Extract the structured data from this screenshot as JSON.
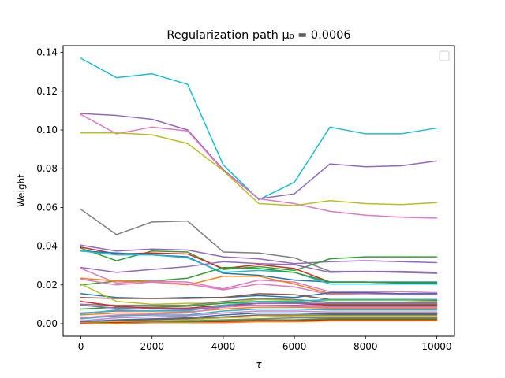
{
  "chart_data": {
    "type": "line",
    "title": "Regularization path μ₀ = 0.0006",
    "xlabel": "τ",
    "ylabel": "Weight",
    "xlim": [
      -500,
      10500
    ],
    "ylim": [
      -0.0065,
      0.1435
    ],
    "xticks": [
      0,
      2000,
      4000,
      6000,
      8000,
      10000
    ],
    "xtick_labels": [
      "0",
      "2000",
      "4000",
      "6000",
      "8000",
      "10000"
    ],
    "yticks": [
      0.0,
      0.02,
      0.04,
      0.06,
      0.08,
      0.1,
      0.12,
      0.14
    ],
    "ytick_labels": [
      "0.00",
      "0.02",
      "0.04",
      "0.06",
      "0.08",
      "0.10",
      "0.12",
      "0.14"
    ],
    "grid": false,
    "legend": "top-right (empty)",
    "x": [
      0,
      1000,
      2000,
      3000,
      4000,
      5000,
      6000,
      7000,
      8000,
      9000,
      10000
    ],
    "series": [
      {
        "color": "#17becf",
        "values": [
          0.137,
          0.127,
          0.129,
          0.1235,
          0.082,
          0.064,
          0.073,
          0.1015,
          0.098,
          0.098,
          0.101
        ]
      },
      {
        "color": "#9467bd",
        "values": [
          0.1085,
          0.1075,
          0.1055,
          0.1,
          0.0795,
          0.0645,
          0.067,
          0.0825,
          0.081,
          0.0815,
          0.084
        ]
      },
      {
        "color": "#e377c2",
        "values": [
          0.108,
          0.098,
          0.1015,
          0.0995,
          0.079,
          0.0645,
          0.062,
          0.058,
          0.056,
          0.055,
          0.0545
        ]
      },
      {
        "color": "#bcbd22",
        "values": [
          0.0985,
          0.0985,
          0.0975,
          0.093,
          0.079,
          0.062,
          0.061,
          0.0635,
          0.062,
          0.0615,
          0.0625
        ]
      },
      {
        "color": "#7f7f7f",
        "values": [
          0.059,
          0.046,
          0.0525,
          0.053,
          0.037,
          0.0365,
          0.034,
          0.027,
          0.027,
          0.0265,
          0.026
        ]
      },
      {
        "color": "#9467bd",
        "values": [
          0.0405,
          0.0375,
          0.0385,
          0.038,
          0.0345,
          0.0335,
          0.031,
          0.032,
          0.0325,
          0.032,
          0.0315
        ]
      },
      {
        "color": "#2ca02c",
        "values": [
          0.039,
          0.0325,
          0.0375,
          0.037,
          0.028,
          0.0295,
          0.0275,
          0.0335,
          0.0345,
          0.0345,
          0.0345
        ]
      },
      {
        "color": "#d62728",
        "values": [
          0.0395,
          0.036,
          0.0365,
          0.036,
          0.0285,
          0.0305,
          0.0285,
          0.0215,
          0.0215,
          0.021,
          0.0205
        ]
      },
      {
        "color": "#1f77b4",
        "values": [
          0.0375,
          0.0365,
          0.0355,
          0.0345,
          0.026,
          0.025,
          0.0225,
          0.0215,
          0.0215,
          0.0215,
          0.0215
        ]
      },
      {
        "color": "#17becf",
        "values": [
          0.0375,
          0.0355,
          0.0355,
          0.034,
          0.0265,
          0.0275,
          0.0265,
          0.0205,
          0.0205,
          0.0205,
          0.0205
        ]
      },
      {
        "color": "#9467bd",
        "values": [
          0.029,
          0.0265,
          0.028,
          0.0295,
          0.032,
          0.031,
          0.0305,
          0.0265,
          0.027,
          0.027,
          0.0265
        ]
      },
      {
        "color": "#2ca02c",
        "values": [
          0.02,
          0.022,
          0.022,
          0.0235,
          0.029,
          0.0285,
          0.0265,
          0.0215,
          0.0215,
          0.021,
          0.021
        ]
      },
      {
        "color": "#e377c2",
        "values": [
          0.0285,
          0.021,
          0.022,
          0.0215,
          0.018,
          0.0225,
          0.0215,
          0.0165,
          0.0165,
          0.0165,
          0.016
        ]
      },
      {
        "color": "#ff7f0e",
        "values": [
          0.0235,
          0.022,
          0.0215,
          0.02,
          0.0245,
          0.0245,
          0.0205,
          0.0155,
          0.016,
          0.0155,
          0.0155
        ]
      },
      {
        "color": "#e377c2",
        "values": [
          0.023,
          0.02,
          0.0215,
          0.0205,
          0.0175,
          0.0205,
          0.019,
          0.015,
          0.0155,
          0.015,
          0.015
        ]
      },
      {
        "color": "#1f77b4",
        "values": [
          0.0155,
          0.0135,
          0.013,
          0.0135,
          0.0135,
          0.0145,
          0.0135,
          0.016,
          0.016,
          0.0155,
          0.0155
        ]
      },
      {
        "color": "#8c564b",
        "values": [
          0.0135,
          0.013,
          0.013,
          0.013,
          0.0135,
          0.0155,
          0.015,
          0.0125,
          0.0125,
          0.0125,
          0.012
        ]
      },
      {
        "color": "#bcbd22",
        "values": [
          0.0205,
          0.0115,
          0.01,
          0.0105,
          0.0105,
          0.0125,
          0.012,
          0.012,
          0.012,
          0.012,
          0.0115
        ]
      },
      {
        "color": "#7f7f7f",
        "values": [
          0.01,
          0.0095,
          0.0095,
          0.0095,
          0.0115,
          0.013,
          0.0125,
          0.011,
          0.011,
          0.011,
          0.011
        ]
      },
      {
        "color": "#2ca02c",
        "values": [
          0.0075,
          0.0085,
          0.0085,
          0.009,
          0.0105,
          0.0115,
          0.011,
          0.01,
          0.01,
          0.01,
          0.01
        ]
      },
      {
        "color": "#d62728",
        "values": [
          0.0115,
          0.009,
          0.008,
          0.008,
          0.0095,
          0.0105,
          0.0105,
          0.0095,
          0.0095,
          0.0095,
          0.0095
        ]
      },
      {
        "color": "#9467bd",
        "values": [
          0.0055,
          0.0065,
          0.0065,
          0.007,
          0.009,
          0.0095,
          0.0095,
          0.009,
          0.009,
          0.009,
          0.009
        ]
      },
      {
        "color": "#ff7f0e",
        "values": [
          0.0045,
          0.0055,
          0.0055,
          0.006,
          0.0075,
          0.0085,
          0.0085,
          0.008,
          0.008,
          0.008,
          0.008
        ]
      },
      {
        "color": "#17becf",
        "values": [
          0.0025,
          0.004,
          0.0045,
          0.0045,
          0.0065,
          0.0075,
          0.0075,
          0.007,
          0.007,
          0.007,
          0.007
        ]
      },
      {
        "color": "#e377c2",
        "values": [
          0.0015,
          0.003,
          0.0035,
          0.004,
          0.0055,
          0.0065,
          0.0065,
          0.006,
          0.006,
          0.006,
          0.006
        ]
      },
      {
        "color": "#1f77b4",
        "values": [
          0.001,
          0.002,
          0.0025,
          0.003,
          0.0045,
          0.0055,
          0.0055,
          0.005,
          0.005,
          0.005,
          0.005
        ]
      },
      {
        "color": "#8c564b",
        "values": [
          0.0005,
          0.0015,
          0.002,
          0.0025,
          0.0035,
          0.0045,
          0.0045,
          0.0045,
          0.0045,
          0.0045,
          0.0045
        ]
      },
      {
        "color": "#bcbd22",
        "values": [
          0.0005,
          0.001,
          0.0015,
          0.002,
          0.003,
          0.0035,
          0.004,
          0.004,
          0.004,
          0.004,
          0.004
        ]
      },
      {
        "color": "#7f7f7f",
        "values": [
          0.0,
          0.0005,
          0.001,
          0.0015,
          0.002,
          0.0025,
          0.003,
          0.003,
          0.003,
          0.003,
          0.003
        ]
      },
      {
        "color": "#2ca02c",
        "values": [
          0.0005,
          0.0005,
          0.0005,
          0.001,
          0.0015,
          0.002,
          0.002,
          0.0025,
          0.0025,
          0.0025,
          0.0025
        ]
      },
      {
        "color": "#d62728",
        "values": [
          0.0,
          0.0005,
          0.0005,
          0.0005,
          0.001,
          0.0015,
          0.0015,
          0.002,
          0.002,
          0.002,
          0.002
        ]
      },
      {
        "color": "#ff7f0e",
        "values": [
          0.0005,
          0.0,
          0.0005,
          0.0005,
          0.0005,
          0.001,
          0.001,
          0.0015,
          0.0015,
          0.0015,
          0.0015
        ]
      },
      {
        "color": "#17becf",
        "values": [
          0.005,
          0.007,
          0.0065,
          0.0065,
          0.0095,
          0.0115,
          0.0115,
          0.0125,
          0.0125,
          0.0125,
          0.0125
        ]
      },
      {
        "color": "#9467bd",
        "values": [
          0.0095,
          0.008,
          0.0075,
          0.0075,
          0.0085,
          0.0105,
          0.0105,
          0.0105,
          0.0105,
          0.0105,
          0.0105
        ]
      },
      {
        "color": "#e377c2",
        "values": [
          0.003,
          0.0045,
          0.005,
          0.0055,
          0.0085,
          0.0095,
          0.009,
          0.0085,
          0.0085,
          0.0085,
          0.0085
        ]
      }
    ]
  }
}
